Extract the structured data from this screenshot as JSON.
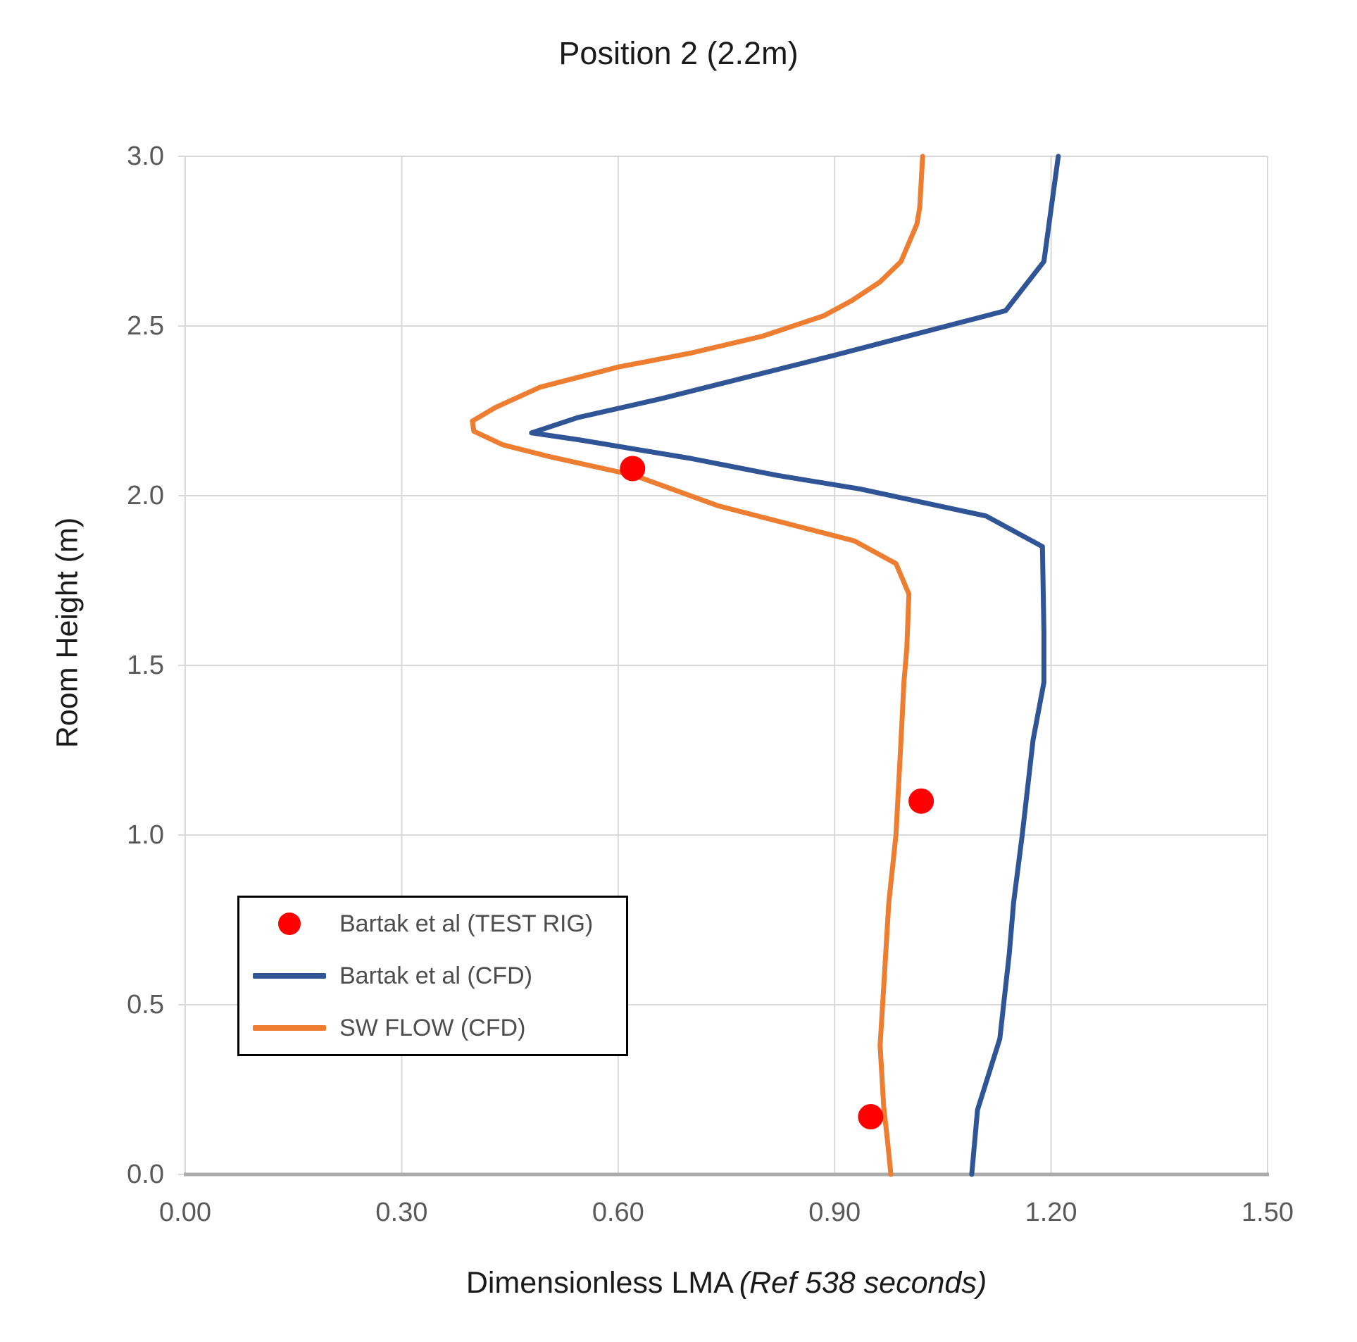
{
  "title": "Position 2 (2.2m)",
  "axes": {
    "x_title_main": "Dimensionless LMA",
    "x_title_italic": "(Ref 538 seconds)",
    "y_title": "Room Height (m)"
  },
  "colors": {
    "gridline": "#D9D9D9",
    "axis_line": "#ACACAC",
    "tick_label": "#595959",
    "legend_border": "#000000"
  },
  "chart_data": {
    "type": "line",
    "title": "Position 2 (2.2m)",
    "xlabel": "Dimensionless LMA (Ref 538 seconds)",
    "ylabel": "Room Height (m)",
    "xlim": [
      0,
      1.5
    ],
    "ylim": [
      0,
      3.0
    ],
    "grid": true,
    "legend_position": "inside-lower-left",
    "x_ticks": {
      "values": [
        0,
        0.3,
        0.6,
        0.9,
        1.2,
        1.5
      ],
      "labels": [
        "0.00",
        "0.30",
        "0.60",
        "0.90",
        "1.20",
        "1.50"
      ]
    },
    "y_ticks": {
      "values": [
        0,
        0.5,
        1.0,
        1.5,
        2.0,
        2.5,
        3.0
      ],
      "labels": [
        "0.0",
        "0.5",
        "1.0",
        "1.5",
        "2.0",
        "2.5",
        "3.0"
      ]
    },
    "series": [
      {
        "name": "Bartak et al (TEST RIG)",
        "type": "scatter",
        "color": "#FF0000",
        "marker": "circle",
        "points": [
          [
            0.62,
            2.08
          ],
          [
            1.02,
            1.1
          ],
          [
            0.95,
            0.17
          ]
        ]
      },
      {
        "name": "Bartak et al (CFD)",
        "type": "line",
        "color": "#2F5597",
        "points": [
          [
            1.21,
            3.0
          ],
          [
            1.19,
            2.69
          ],
          [
            1.137,
            2.545
          ],
          [
            0.9,
            2.414
          ],
          [
            0.658,
            2.285
          ],
          [
            0.544,
            2.23
          ],
          [
            0.48,
            2.185
          ],
          [
            0.545,
            2.165
          ],
          [
            0.7,
            2.11
          ],
          [
            0.82,
            2.06
          ],
          [
            0.935,
            2.02
          ],
          [
            1.11,
            1.94
          ],
          [
            1.188,
            1.85
          ],
          [
            1.19,
            1.6
          ],
          [
            1.19,
            1.45
          ],
          [
            1.175,
            1.28
          ],
          [
            1.16,
            1.0
          ],
          [
            1.148,
            0.8
          ],
          [
            1.142,
            0.65
          ],
          [
            1.129,
            0.4
          ],
          [
            1.098,
            0.19
          ],
          [
            1.09,
            0.0
          ]
        ]
      },
      {
        "name": "SW FLOW (CFD)",
        "type": "line",
        "color": "#ED7D31",
        "points": [
          [
            1.022,
            3.0
          ],
          [
            1.018,
            2.85
          ],
          [
            1.014,
            2.8
          ],
          [
            1.002,
            2.74
          ],
          [
            0.992,
            2.69
          ],
          [
            0.963,
            2.63
          ],
          [
            0.924,
            2.575
          ],
          [
            0.885,
            2.53
          ],
          [
            0.8,
            2.47
          ],
          [
            0.7,
            2.42
          ],
          [
            0.6,
            2.379
          ],
          [
            0.492,
            2.32
          ],
          [
            0.43,
            2.26
          ],
          [
            0.398,
            2.22
          ],
          [
            0.4,
            2.19
          ],
          [
            0.44,
            2.15
          ],
          [
            0.505,
            2.115
          ],
          [
            0.622,
            2.06
          ],
          [
            0.739,
            1.97
          ],
          [
            0.927,
            1.867
          ],
          [
            0.985,
            1.8
          ],
          [
            1.003,
            1.71
          ],
          [
            1.0,
            1.55
          ],
          [
            0.996,
            1.45
          ],
          [
            0.992,
            1.28
          ],
          [
            0.985,
            1.0
          ],
          [
            0.975,
            0.8
          ],
          [
            0.97,
            0.62
          ],
          [
            0.963,
            0.38
          ],
          [
            0.968,
            0.2
          ],
          [
            0.973,
            0.105
          ],
          [
            0.978,
            0.0
          ]
        ]
      }
    ]
  }
}
